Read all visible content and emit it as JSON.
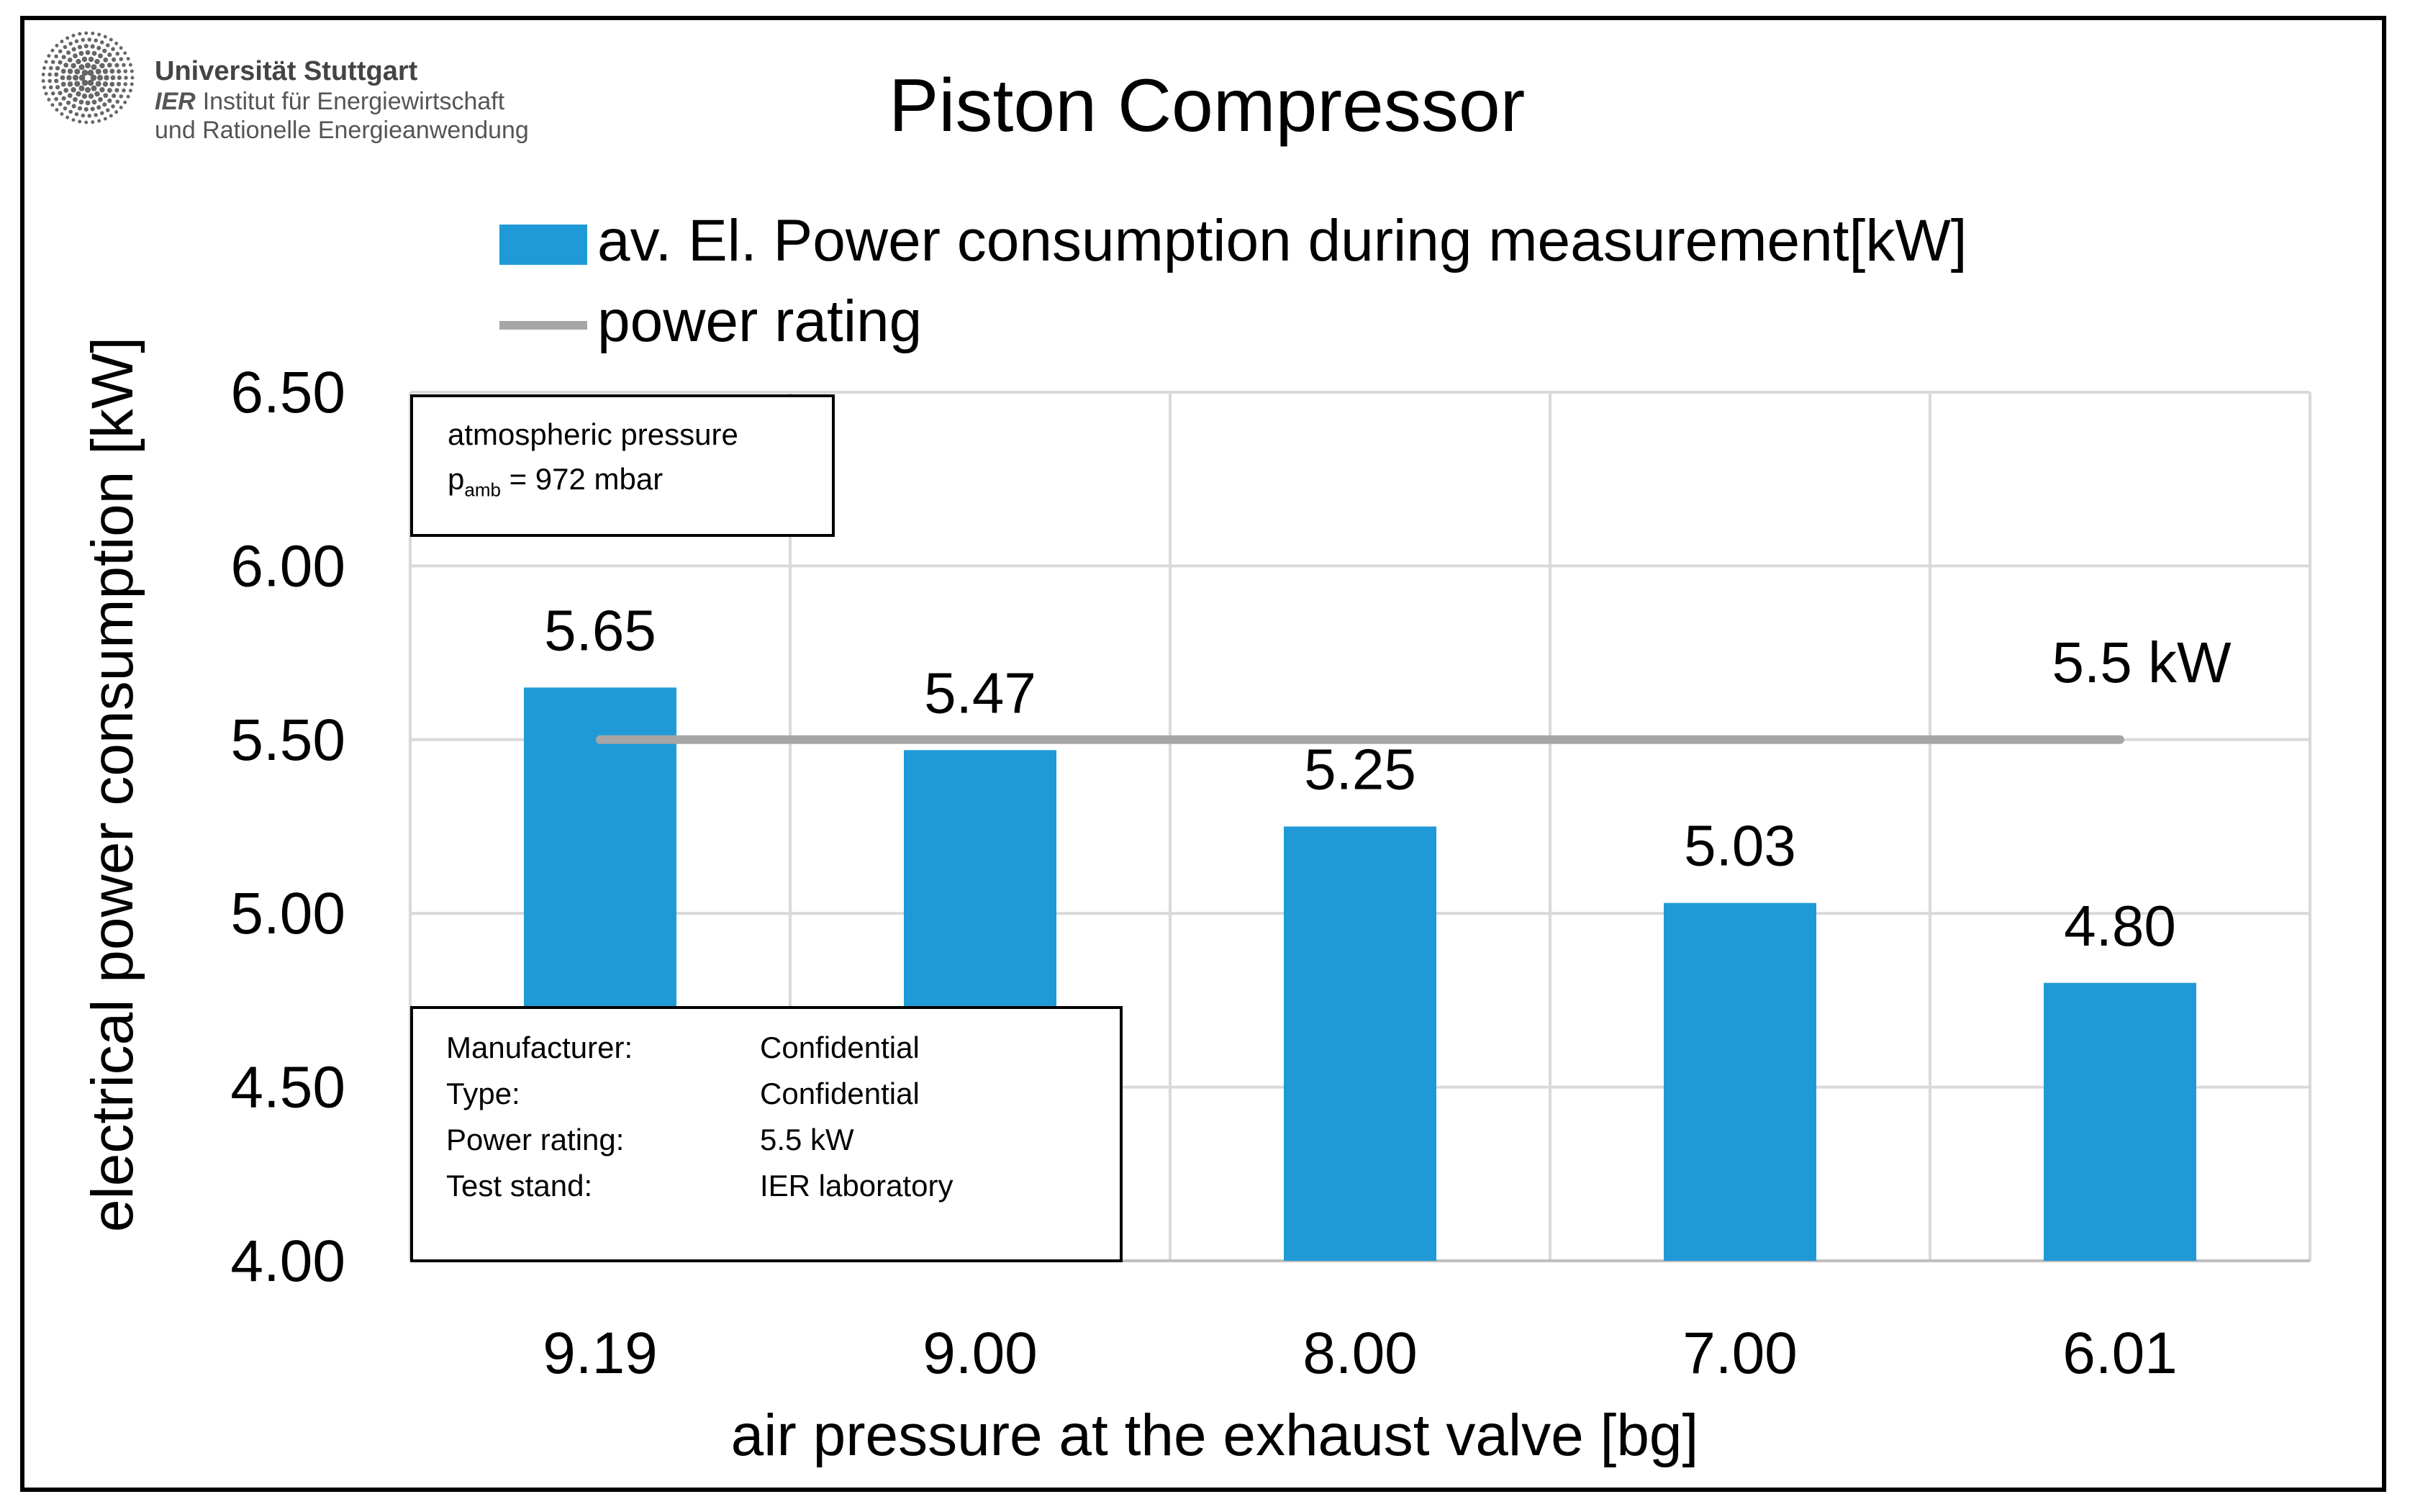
{
  "header": {
    "university": "Universität Stuttgart",
    "institute_abbr": "IER",
    "institute_line1": "Institut für Energiewirtschaft",
    "institute_line2": "und Rationelle Energieanwendung"
  },
  "legend": {
    "bar_label": "av. El. Power consumption during measurement[kW]",
    "line_label": "power rating"
  },
  "atm_box": {
    "line1": "atmospheric pressure",
    "symbol": "p",
    "subscript": "amb",
    "value": "= 972 mbar"
  },
  "info_box": {
    "rows": [
      {
        "key": "Manufacturer:",
        "value": "Confidential"
      },
      {
        "key": "Type:",
        "value": "Confidential"
      },
      {
        "key": "Power rating:",
        "value": "5.5 kW"
      },
      {
        "key": "Test stand:",
        "value": "IER laboratory"
      }
    ]
  },
  "colors": {
    "bar": "#1f9ad6",
    "rating_line": "#a6a6a6",
    "grid": "#d9d9d9"
  },
  "chart_data": {
    "type": "bar",
    "title": "Piston Compressor",
    "xlabel": "air pressure at the exhaust valve [bg]",
    "ylabel": "electrical power consumption [kW]",
    "categories": [
      "9.19",
      "9.00",
      "8.00",
      "7.00",
      "6.01"
    ],
    "series": [
      {
        "name": "av. El. Power consumption during measurement[kW]",
        "values": [
          5.65,
          5.47,
          5.25,
          5.03,
          4.8
        ]
      }
    ],
    "data_labels": [
      "5.65",
      "5.47",
      "5.25",
      "5.03",
      "4.80"
    ],
    "reference_line": {
      "name": "power rating",
      "value": 5.5,
      "label": "5.5 kW"
    },
    "ylim": [
      4.0,
      6.5
    ],
    "yticks": [
      4.0,
      4.5,
      5.0,
      5.5,
      6.0,
      6.5
    ],
    "ytick_labels": [
      "4.00",
      "4.50",
      "5.00",
      "5.50",
      "6.00",
      "6.50"
    ],
    "grid": true,
    "legend_position": "top"
  }
}
